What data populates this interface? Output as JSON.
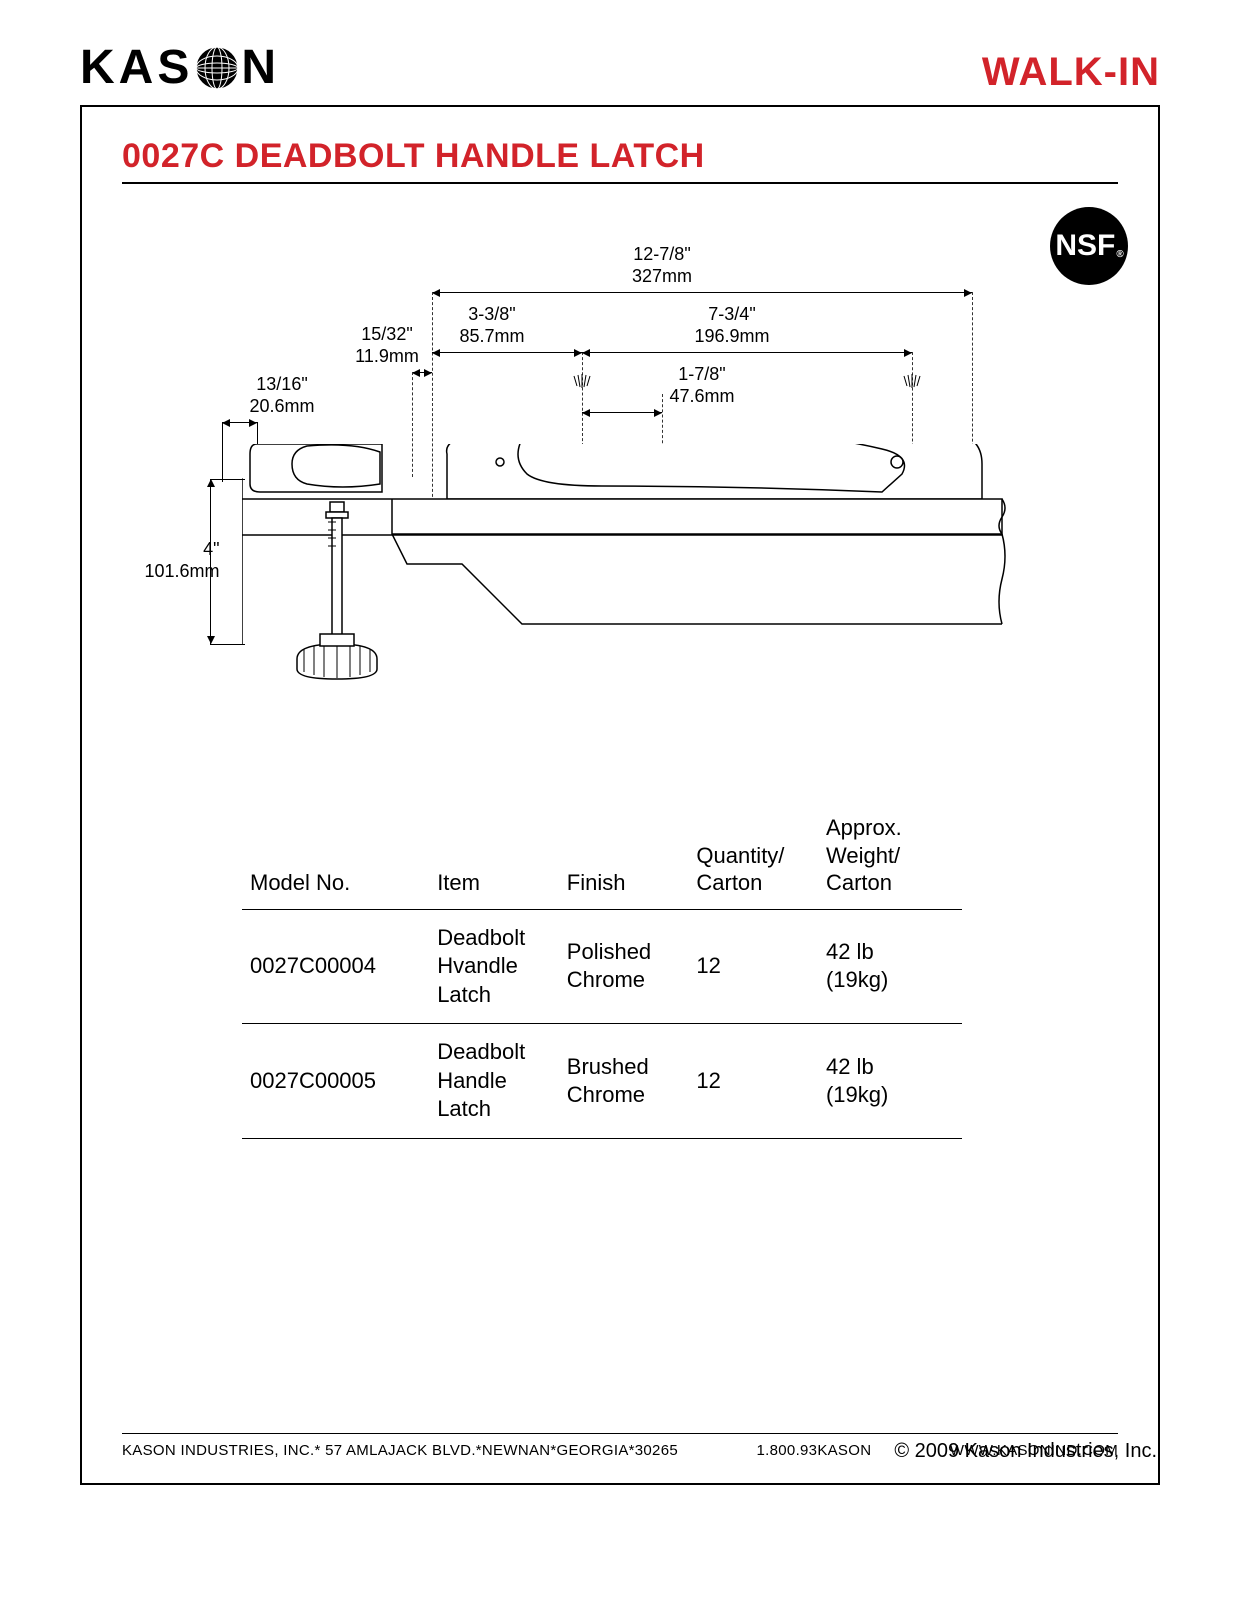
{
  "header": {
    "logo_left": "KAS",
    "logo_right": "N",
    "category": "WALK-IN",
    "category_color": "#d2232a"
  },
  "title": "0027C DEADBOLT HANDLE LATCH",
  "badge": {
    "text": "NSF",
    "reg": "®"
  },
  "diagram": {
    "dims": {
      "overall_w": {
        "inch": "12-7/8\"",
        "mm": "327mm"
      },
      "left_seg": {
        "inch": "3-3/8\"",
        "mm": "85.7mm"
      },
      "right_seg": {
        "inch": "7-3/4\"",
        "mm": "196.9mm"
      },
      "offset": {
        "inch": "15/32\"",
        "mm": "11.9mm"
      },
      "hole_sp": {
        "inch": "1-7/8\"",
        "mm": "47.6mm"
      },
      "plate_w": {
        "inch": "13/16\"",
        "mm": "20.6mm"
      },
      "height": {
        "inch": "4\"",
        "mm": "101.6mm"
      }
    },
    "stroke": "#000000",
    "fill": "#ffffff"
  },
  "table": {
    "columns": [
      "Model No.",
      "Item",
      "Finish",
      "Quantity/\nCarton",
      "Approx.\nWeight/\nCarton"
    ],
    "rows": [
      [
        "0027C00004",
        "Deadbolt\nHvandle\nLatch",
        "Polished\nChrome",
        "12",
        "42 lb\n(19kg)"
      ],
      [
        "0027C00005",
        "Deadbolt\nHandle\nLatch",
        "Brushed\nChrome",
        "12",
        "42 lb\n(19kg)"
      ]
    ],
    "col_widths": [
      "26%",
      "18%",
      "18%",
      "18%",
      "20%"
    ]
  },
  "footer": {
    "address": "KASON INDUSTRIES, INC.* 57 AMLAJACK BLVD.*NEWNAN*GEORGIA*30265",
    "phone": "1.800.93KASON",
    "web": "WWW.KASONIND.COM"
  },
  "copyright": "© 2009 Kason Industries, Inc."
}
